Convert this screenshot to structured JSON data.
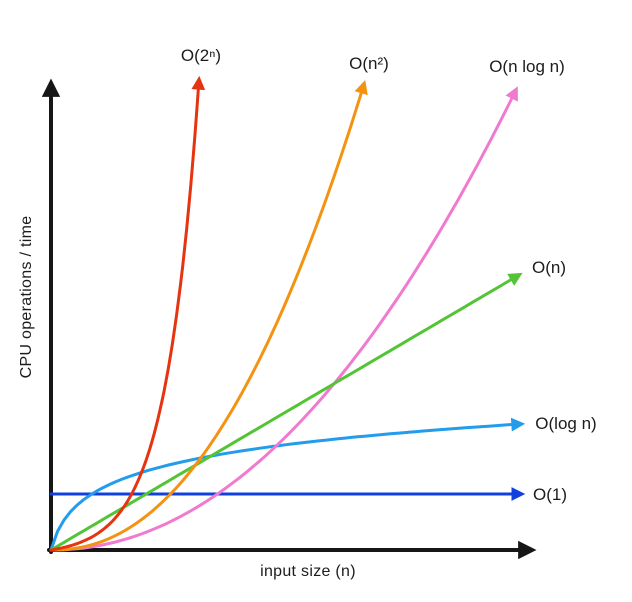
{
  "chart_data": {
    "type": "line",
    "title": "",
    "xlabel": "input size (n)",
    "ylabel": "CPU operations / time",
    "axes": {
      "ticks": false,
      "grid": false,
      "qualitative": true
    },
    "legend_position": "inline-at-curve-ends",
    "series": [
      {
        "id": "constant",
        "name": "O(1)",
        "complexity": "constant",
        "color": "#1240e0",
        "shape": "constant",
        "param": 0,
        "end": [
          521,
          494
        ]
      },
      {
        "id": "logarithmic",
        "name": "O(log n)",
        "complexity": "logarithmic",
        "color": "#229ceb",
        "shape": "log",
        "param": 60,
        "end": [
          521,
          424
        ]
      },
      {
        "id": "linearithmic",
        "name": "O(n log n)",
        "complexity": "linearithmic",
        "color": "#f07ad0",
        "shape": "power",
        "param": 2.05,
        "end": [
          516,
          90
        ]
      },
      {
        "id": "linear",
        "name": "O(n)",
        "complexity": "linear",
        "color": "#53c436",
        "shape": "linear",
        "param": 1,
        "end": [
          519,
          275
        ]
      },
      {
        "id": "quadratic",
        "name": "O(n²)",
        "complexity": "quadratic",
        "color": "#f49311",
        "shape": "power",
        "param": 2.2,
        "end": [
          364,
          84
        ]
      },
      {
        "id": "exponential",
        "name": "O(2ⁿ)",
        "complexity": "exponential",
        "color": "#e5340f",
        "shape": "exp",
        "param": 4.5,
        "end": [
          199,
          80
        ]
      }
    ],
    "geometry": {
      "origin": [
        51,
        550
      ],
      "x_axis_end": [
        531,
        550
      ],
      "y_axis_end": [
        51,
        84
      ],
      "curve_stroke": 3,
      "axis_stroke": 4,
      "axis_color": "#161616"
    }
  }
}
